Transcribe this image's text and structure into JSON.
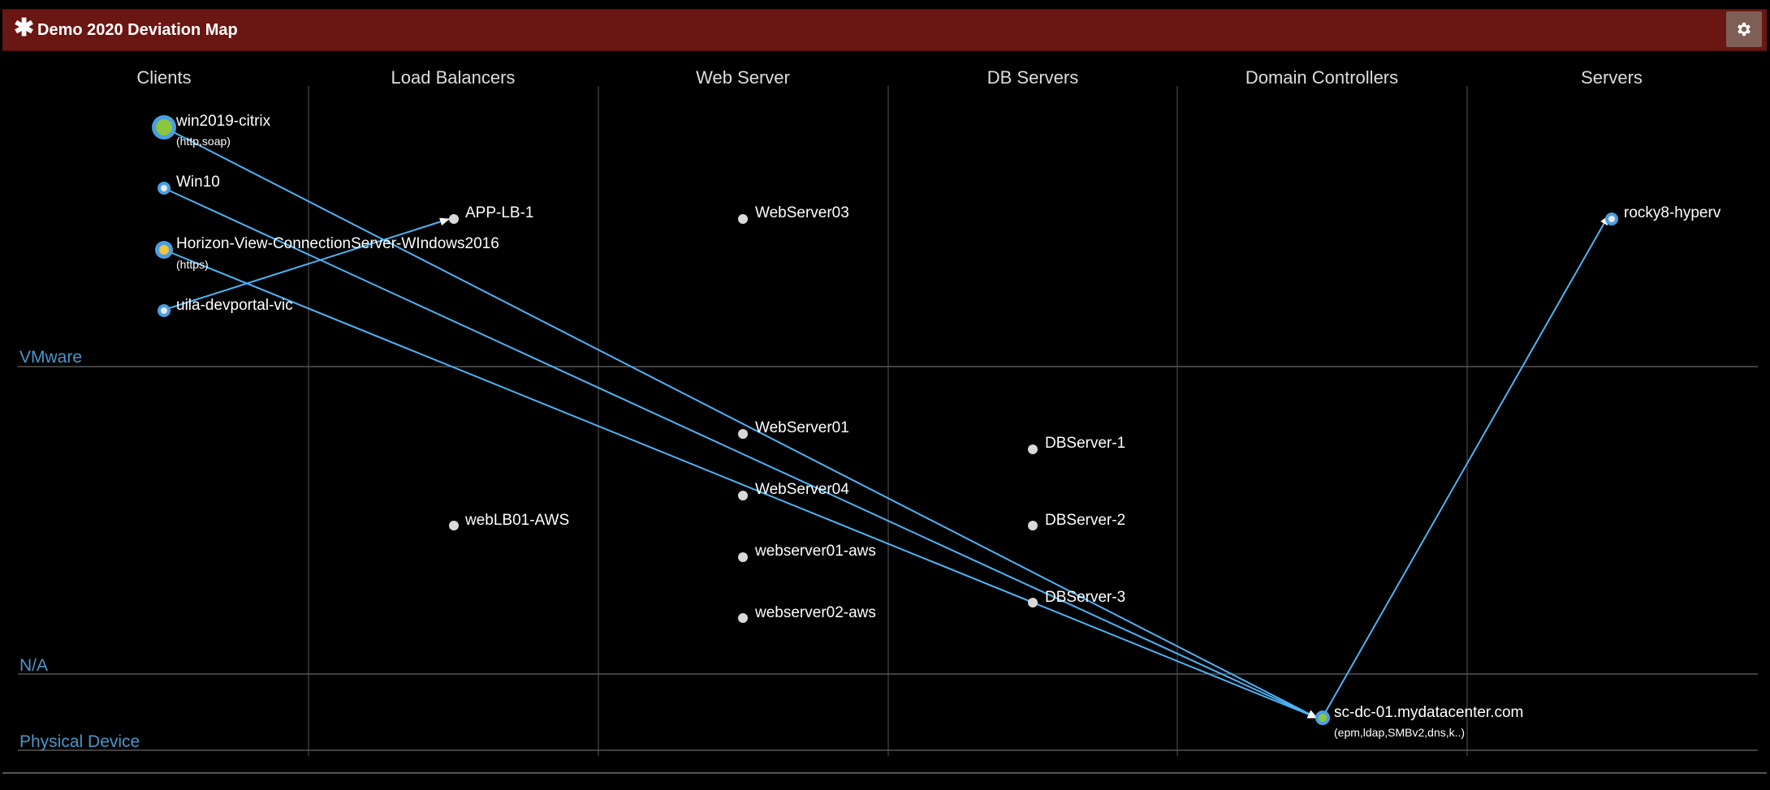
{
  "window": {
    "title": "Demo 2020 Deviation Map",
    "title_icon": "asterisk-icon",
    "settings_icon": "gear-icon"
  },
  "columns": [
    "Clients",
    "Load Balancers",
    "Web Server",
    "DB Servers",
    "Domain Controllers",
    "Servers"
  ],
  "bands": [
    "VMware",
    "N/A",
    "Physical Device"
  ],
  "nodes": {
    "win2019_citrix": {
      "label": "win2019-citrix",
      "sub": "(http,soap)"
    },
    "win10": {
      "label": "Win10"
    },
    "horizon": {
      "label": "Horizon-View-ConnectionServer-WIndows2016",
      "sub": "(https)"
    },
    "uila_devportal": {
      "label": "uila-devportal-vic"
    },
    "app_lb_1": {
      "label": "APP-LB-1"
    },
    "webserver03": {
      "label": "WebServer03"
    },
    "rocky8_hyperv": {
      "label": "rocky8-hyperv"
    },
    "webserver01": {
      "label": "WebServer01"
    },
    "webserver04": {
      "label": "WebServer04"
    },
    "weblb01_aws": {
      "label": "webLB01-AWS"
    },
    "webserver01_aws": {
      "label": "webserver01-aws"
    },
    "webserver02_aws": {
      "label": "webserver02-aws"
    },
    "dbserver1": {
      "label": "DBServer-1"
    },
    "dbserver2": {
      "label": "DBServer-2"
    },
    "dbserver3": {
      "label": "DBServer-3"
    },
    "sc_dc_01": {
      "label": "sc-dc-01.mydatacenter.com",
      "sub": "(epm,ldap,SMBv2,dns,k..)"
    }
  },
  "colors": {
    "title_bar": "#6a1612",
    "link": "#4fb3f5",
    "band_label": "#4a97c9",
    "node_status_green": "#8cc63f",
    "node_status_yellow": "#f5c242",
    "node_inactive": "#d9d9d9"
  }
}
